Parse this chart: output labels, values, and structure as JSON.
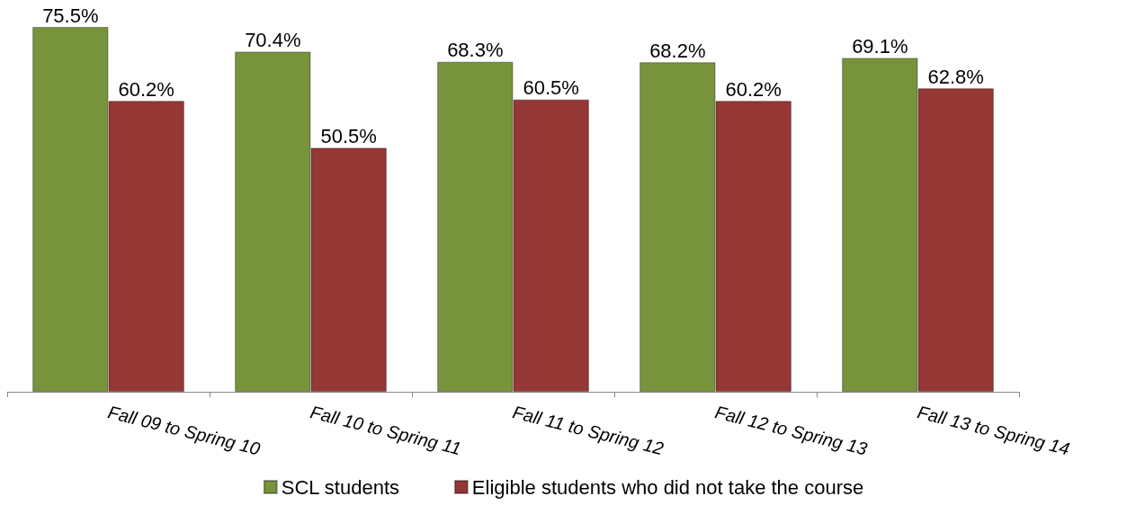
{
  "chart_data": {
    "type": "bar",
    "categories": [
      "Fall 09 to Spring 10",
      "Fall 10 to Spring 11",
      "Fall 11 to Spring 12",
      "Fall 12 to Spring 13",
      "Fall 13 to Spring 14"
    ],
    "series": [
      {
        "name": "SCL students",
        "color": "#77933c",
        "values": [
          75.5,
          70.4,
          68.3,
          68.2,
          69.1
        ],
        "value_labels": [
          "75.5%",
          "70.4%",
          "68.3%",
          "68.2%",
          "69.1%"
        ]
      },
      {
        "name": "Eligible students who did not take the course",
        "color": "#953735",
        "values": [
          60.2,
          50.5,
          60.5,
          60.2,
          62.8
        ],
        "value_labels": [
          "60.2%",
          "50.5%",
          "60.5%",
          "60.2%",
          "62.8%"
        ]
      }
    ],
    "legend": "bottom",
    "tick_labels": "x"
  }
}
